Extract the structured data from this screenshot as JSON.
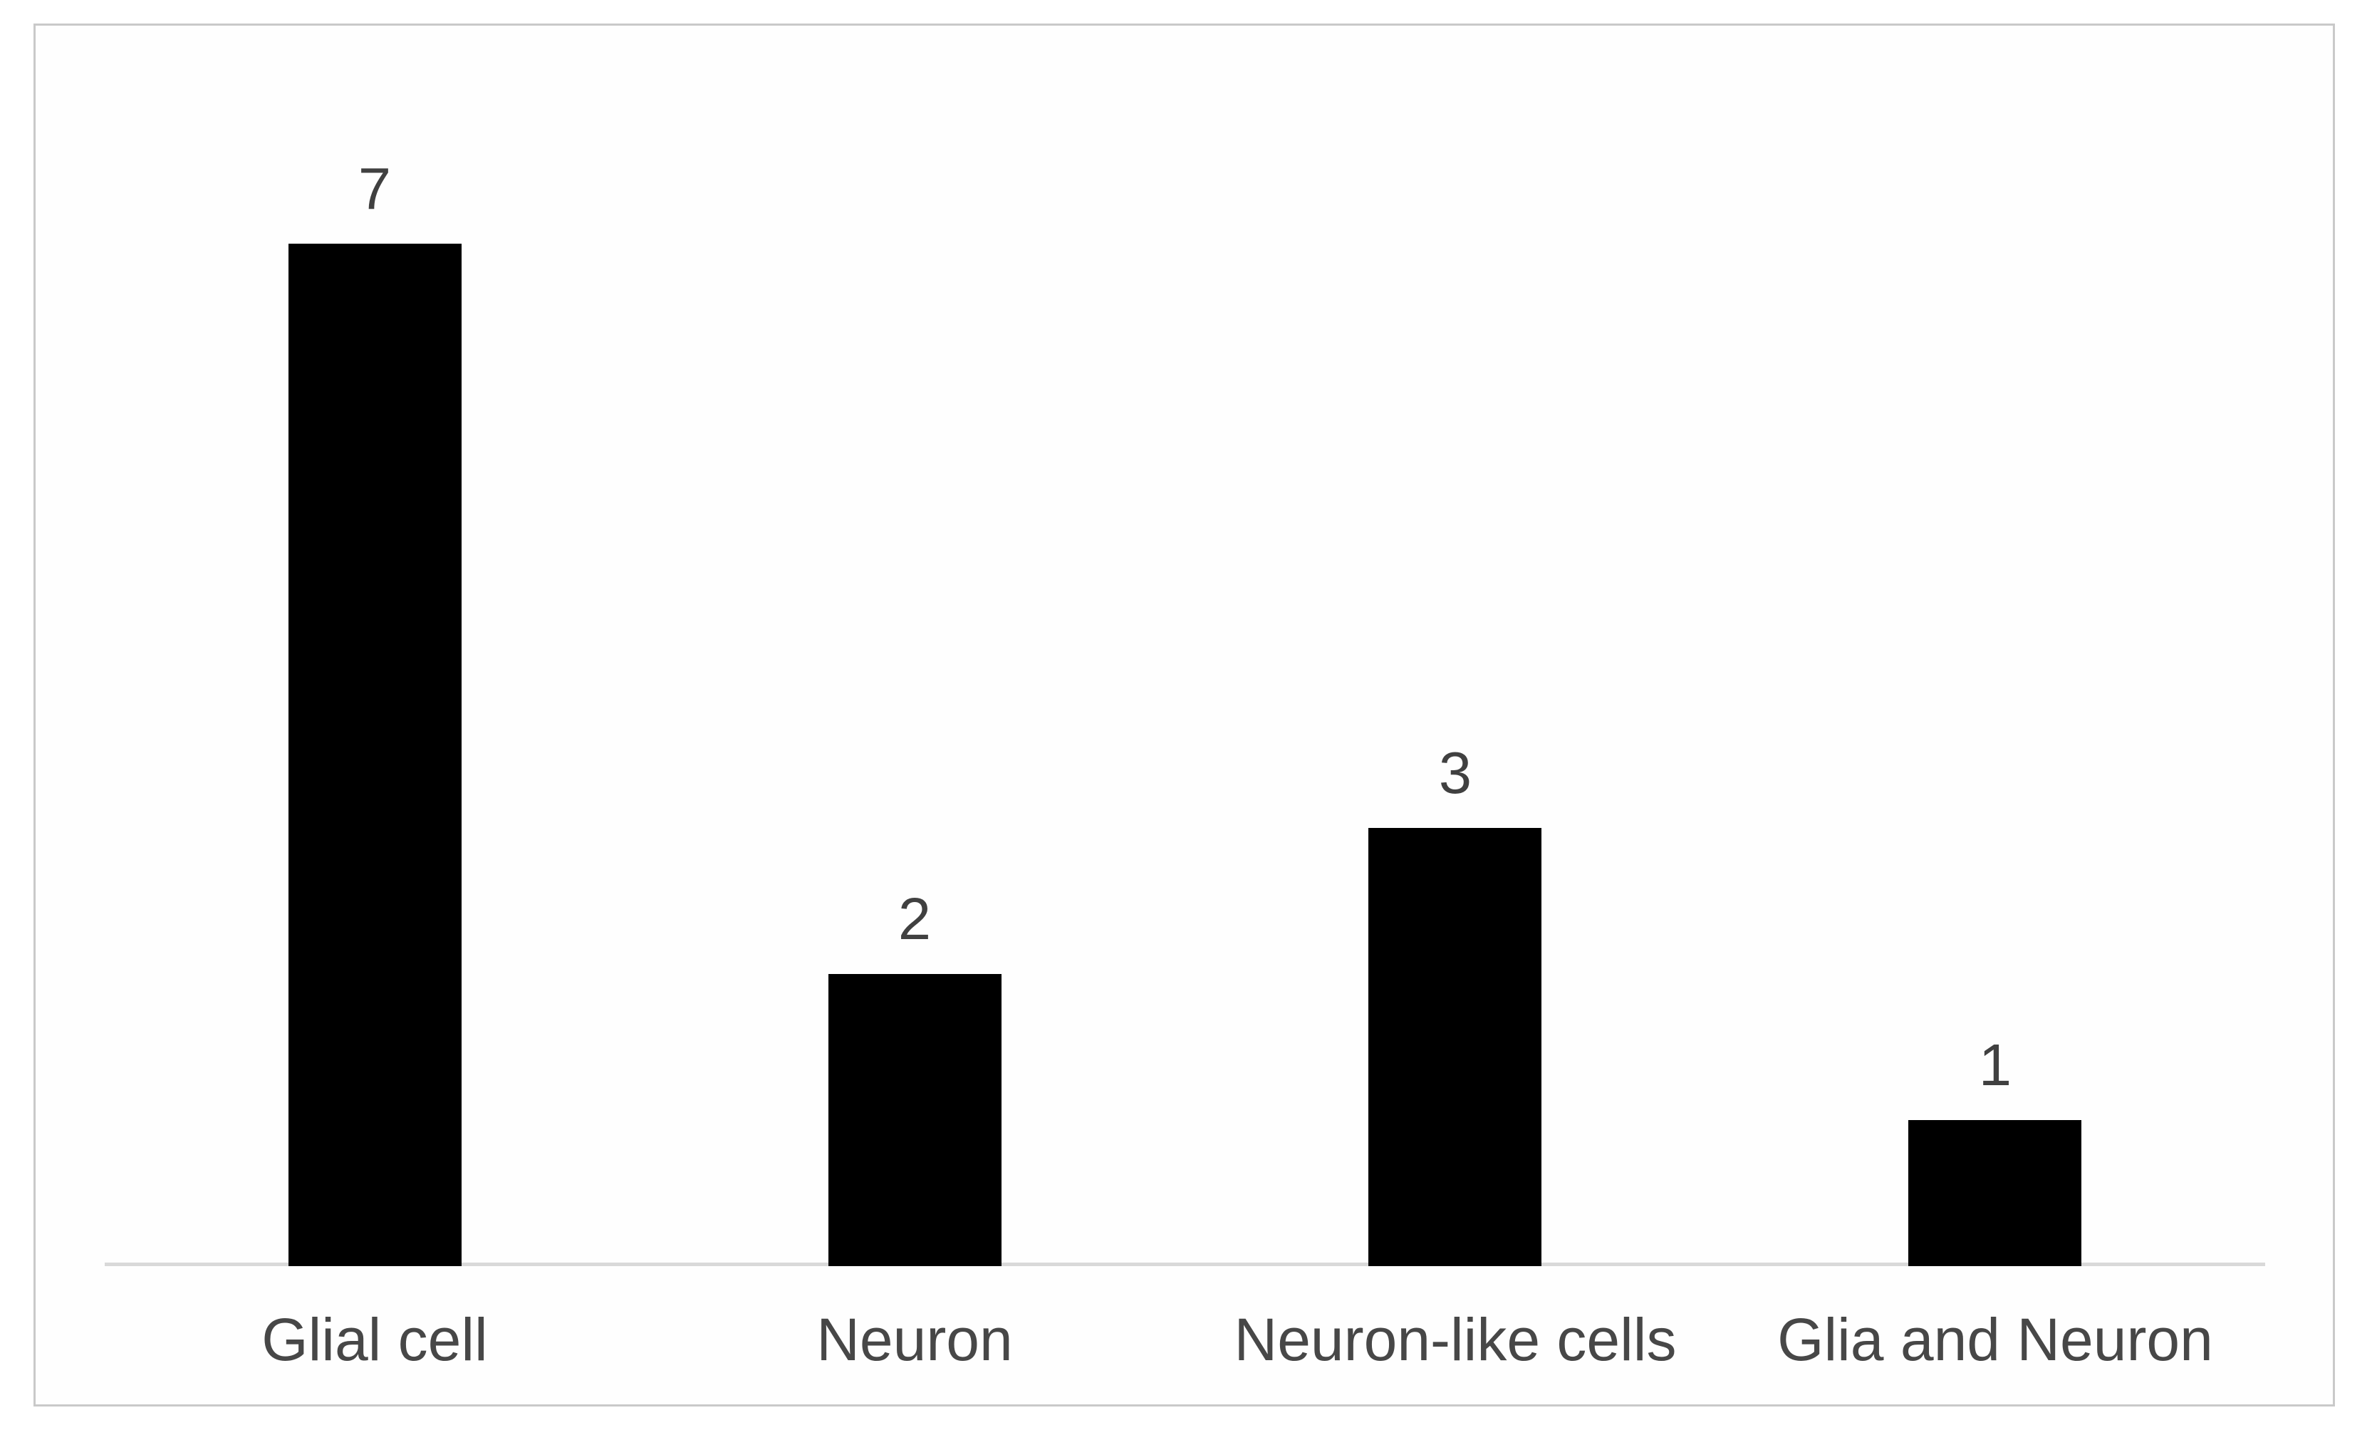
{
  "figure": {
    "background": "#ffffff",
    "frame_border_color": "#c9c9c9"
  },
  "chart_data": {
    "type": "bar",
    "title": "",
    "xlabel": "",
    "ylabel": "",
    "categories": [
      "Glial cell",
      "Neuron",
      "Neuron-like cells",
      "Glia and Neuron"
    ],
    "values": [
      7,
      2,
      3,
      1
    ],
    "data_labels": [
      "7",
      "2",
      "3",
      "1"
    ],
    "ylim": [
      0,
      8.5
    ],
    "grid": false,
    "legend": "none",
    "y_axis_visible": false,
    "x_axis_line_color": "#d9d9d9",
    "bar_color": "#000000",
    "label_color": "#404040",
    "category_label_color": "#474747",
    "bar_width_ratio": 0.32
  }
}
